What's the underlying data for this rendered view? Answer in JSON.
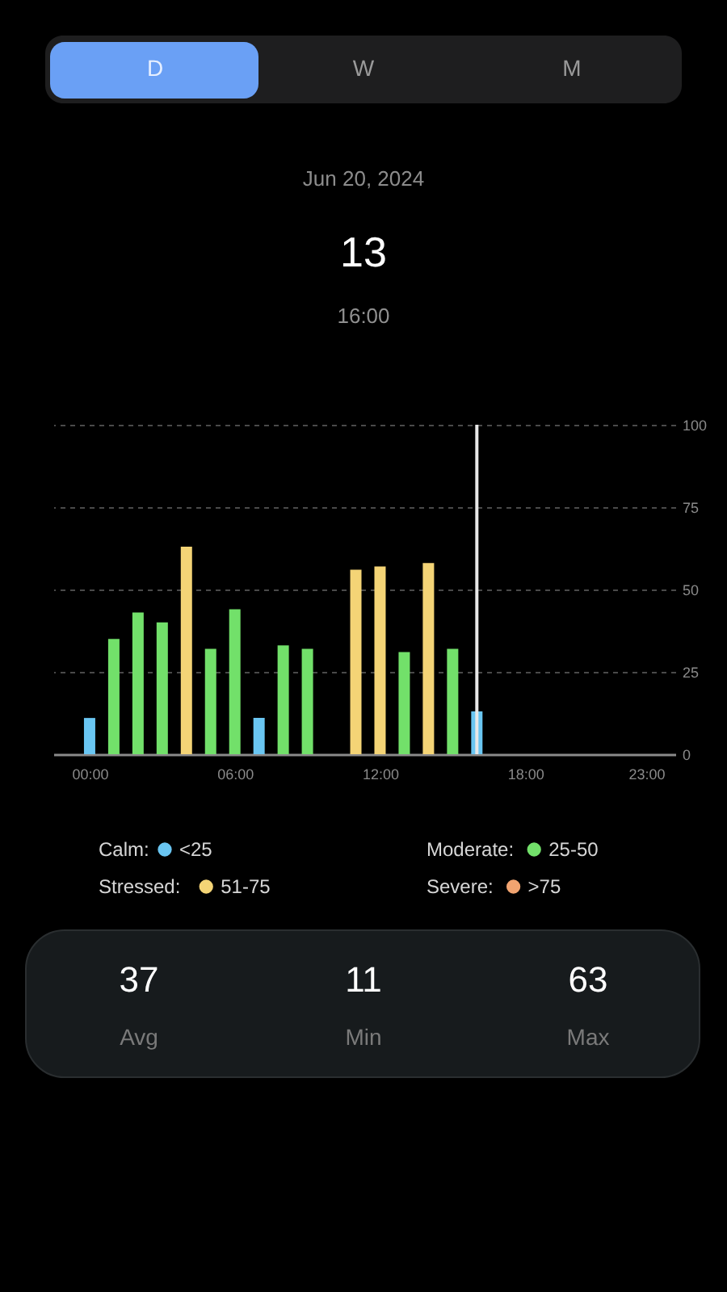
{
  "chart_data": {
    "type": "bar",
    "title": "Jun 20, 2024",
    "annotations": [
      "D",
      "W",
      "M",
      "13",
      "16:00",
      "37",
      "Avg",
      "11",
      "Min",
      "63",
      "Max",
      "<25",
      "25-50",
      "51-75",
      ">75"
    ],
    "x": [
      0,
      1,
      2,
      3,
      4,
      5,
      6,
      7,
      8,
      9,
      11,
      12,
      13,
      14,
      15,
      16
    ],
    "series": [
      {
        "name": "Calm:",
        "color": "#6ac6f2",
        "values": [
          11,
          null,
          null,
          null,
          null,
          null,
          null,
          11,
          null,
          null,
          null,
          null,
          null,
          null,
          null,
          13
        ]
      },
      {
        "name": "Moderate:",
        "color": "#72e06a",
        "values": [
          null,
          35,
          43,
          40,
          null,
          32,
          44,
          null,
          33,
          32,
          null,
          null,
          31,
          null,
          32,
          null
        ]
      },
      {
        "name": "Stressed:",
        "color": "#f4d476",
        "values": [
          null,
          null,
          null,
          null,
          63,
          null,
          null,
          null,
          null,
          null,
          56,
          57,
          null,
          58,
          null,
          null
        ]
      },
      {
        "name": "Severe:",
        "color": "#f2a470",
        "values": [
          null,
          null,
          null,
          null,
          null,
          null,
          null,
          null,
          null,
          null,
          null,
          null,
          null,
          null,
          null,
          null
        ]
      }
    ],
    "xlim": [
      -1.5,
      24.2
    ],
    "xticks": [
      {
        "value": 0,
        "label": "00:00"
      },
      {
        "value": 6,
        "label": "06:00"
      },
      {
        "value": 12,
        "label": "12:00"
      },
      {
        "value": 18,
        "label": "18:00"
      },
      {
        "value": 23,
        "label": "23:00"
      }
    ],
    "ylim": [
      0,
      100
    ],
    "yticks": [
      0,
      25,
      50,
      75,
      100
    ],
    "grid": "y",
    "legend": "bottom",
    "ref_lines": [
      {
        "axis": "x",
        "value": 16,
        "color": "#e8e8e8"
      }
    ]
  }
}
